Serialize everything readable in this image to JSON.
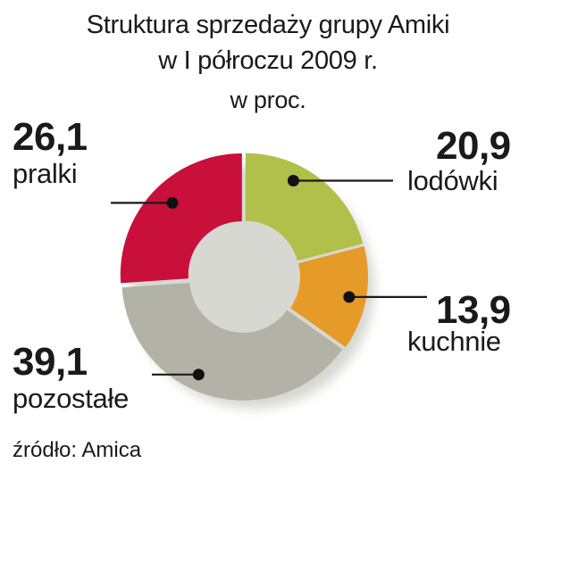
{
  "title_line1": "Struktura sprzedaży grupy Amiki",
  "title_line2": "w I półroczu 2009 r.",
  "unit": "w proc.",
  "source": "źródło: Amica",
  "chart_data": {
    "type": "pie",
    "style": "donut",
    "title": "Struktura sprzedaży grupy Amiki w I półroczu 2009 r.",
    "unit": "w proc.",
    "slices": [
      {
        "label": "lodówki",
        "value": 20.9,
        "display": "20,9",
        "color": "#b0c04a"
      },
      {
        "label": "kuchnie",
        "value": 13.9,
        "display": "13,9",
        "color": "#e69a28"
      },
      {
        "label": "pozostałe",
        "value": 39.1,
        "display": "39,1",
        "color": "#b2b2a6"
      },
      {
        "label": "pralki",
        "value": 26.1,
        "display": "26,1",
        "color": "#c8103a"
      }
    ]
  }
}
